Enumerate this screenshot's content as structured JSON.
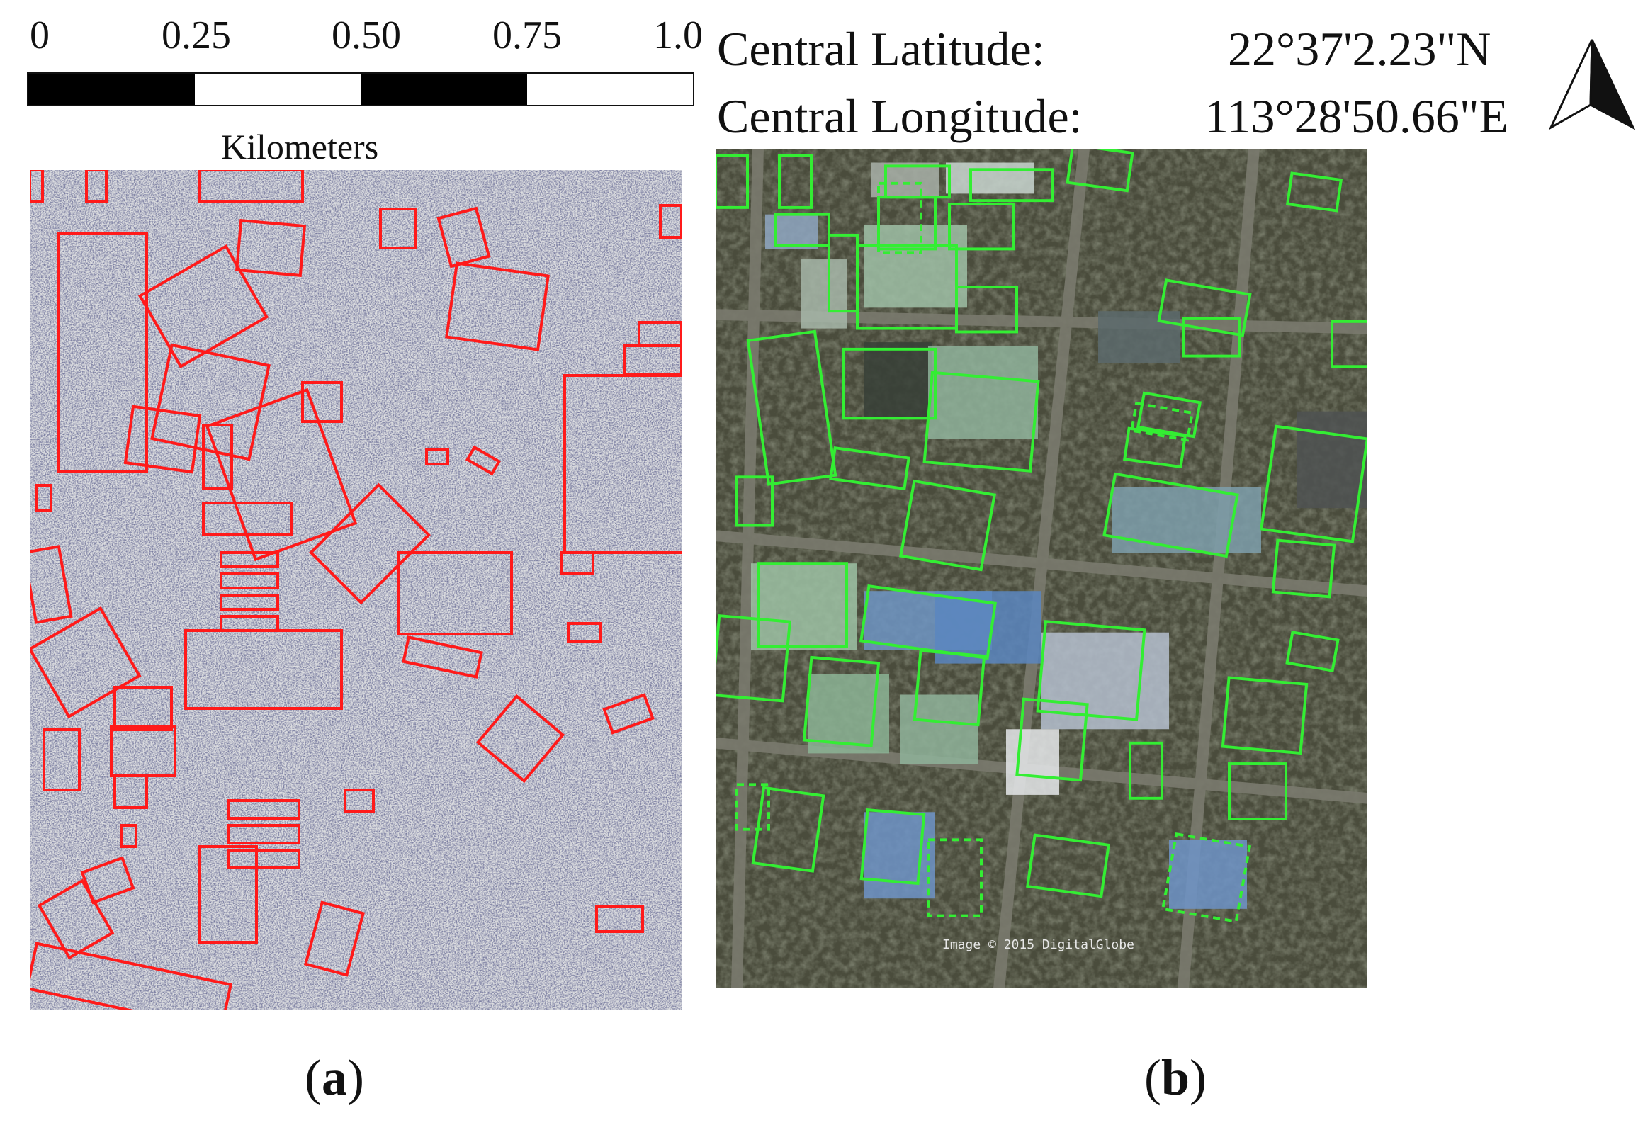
{
  "scale_bar": {
    "ticks": [
      "0",
      "0.25",
      "0.50",
      "0.75",
      "1.0"
    ],
    "units": "Kilometers",
    "segments": [
      "black",
      "white",
      "black",
      "white"
    ]
  },
  "coordinates": {
    "lat_label": "Central Latitude:",
    "lat_value": "22°37'2.23\"N",
    "lon_label": "Central Longitude:",
    "lon_value": "113°28'50.66\"E"
  },
  "north_arrow": {
    "icon": "north-arrow-icon"
  },
  "panels": [
    {
      "id": "a",
      "caption_open": "(",
      "caption_letter": "a",
      "caption_close": ")",
      "type": "SAR image",
      "box_color": "#ff1a1a"
    },
    {
      "id": "b",
      "caption_open": "(",
      "caption_letter": "b",
      "caption_close": ")",
      "type": "optical image",
      "box_color": "#33ee33",
      "credit": "Image © 2015 DigitalGlobe"
    }
  ],
  "colors": {
    "sar_box": "#ff1a1a",
    "optical_box": "#33ee33",
    "text": "#111111"
  }
}
